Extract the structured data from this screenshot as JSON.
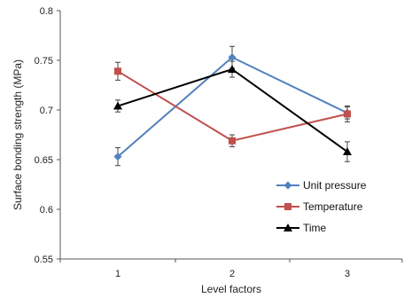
{
  "chart_data": {
    "type": "line",
    "title": "",
    "xlabel": "Level factors",
    "ylabel": "Surface bonding strength (MPa)",
    "x": [
      1,
      2,
      3
    ],
    "x_tick_labels": [
      "1",
      "2",
      "3"
    ],
    "y_tick_labels": [
      "0.55",
      "0.6",
      "0.65",
      "0.7",
      "0.75",
      "0.8"
    ],
    "ylim": [
      0.55,
      0.8
    ],
    "grid": false,
    "legend_position": "lower-right",
    "series": [
      {
        "name": "Unit pressure",
        "color": "#4F81BD",
        "marker": "diamond",
        "values": [
          0.653,
          0.753,
          0.697
        ],
        "errors": [
          0.009,
          0.011,
          0.006
        ]
      },
      {
        "name": "Temperature",
        "color": "#C0504D",
        "marker": "square",
        "values": [
          0.739,
          0.669,
          0.696
        ],
        "errors": [
          0.009,
          0.006,
          0.008
        ]
      },
      {
        "name": "Time",
        "color": "#000000",
        "marker": "triangle",
        "values": [
          0.704,
          0.741,
          0.658
        ],
        "errors": [
          0.006,
          0.008,
          0.01
        ]
      }
    ]
  }
}
